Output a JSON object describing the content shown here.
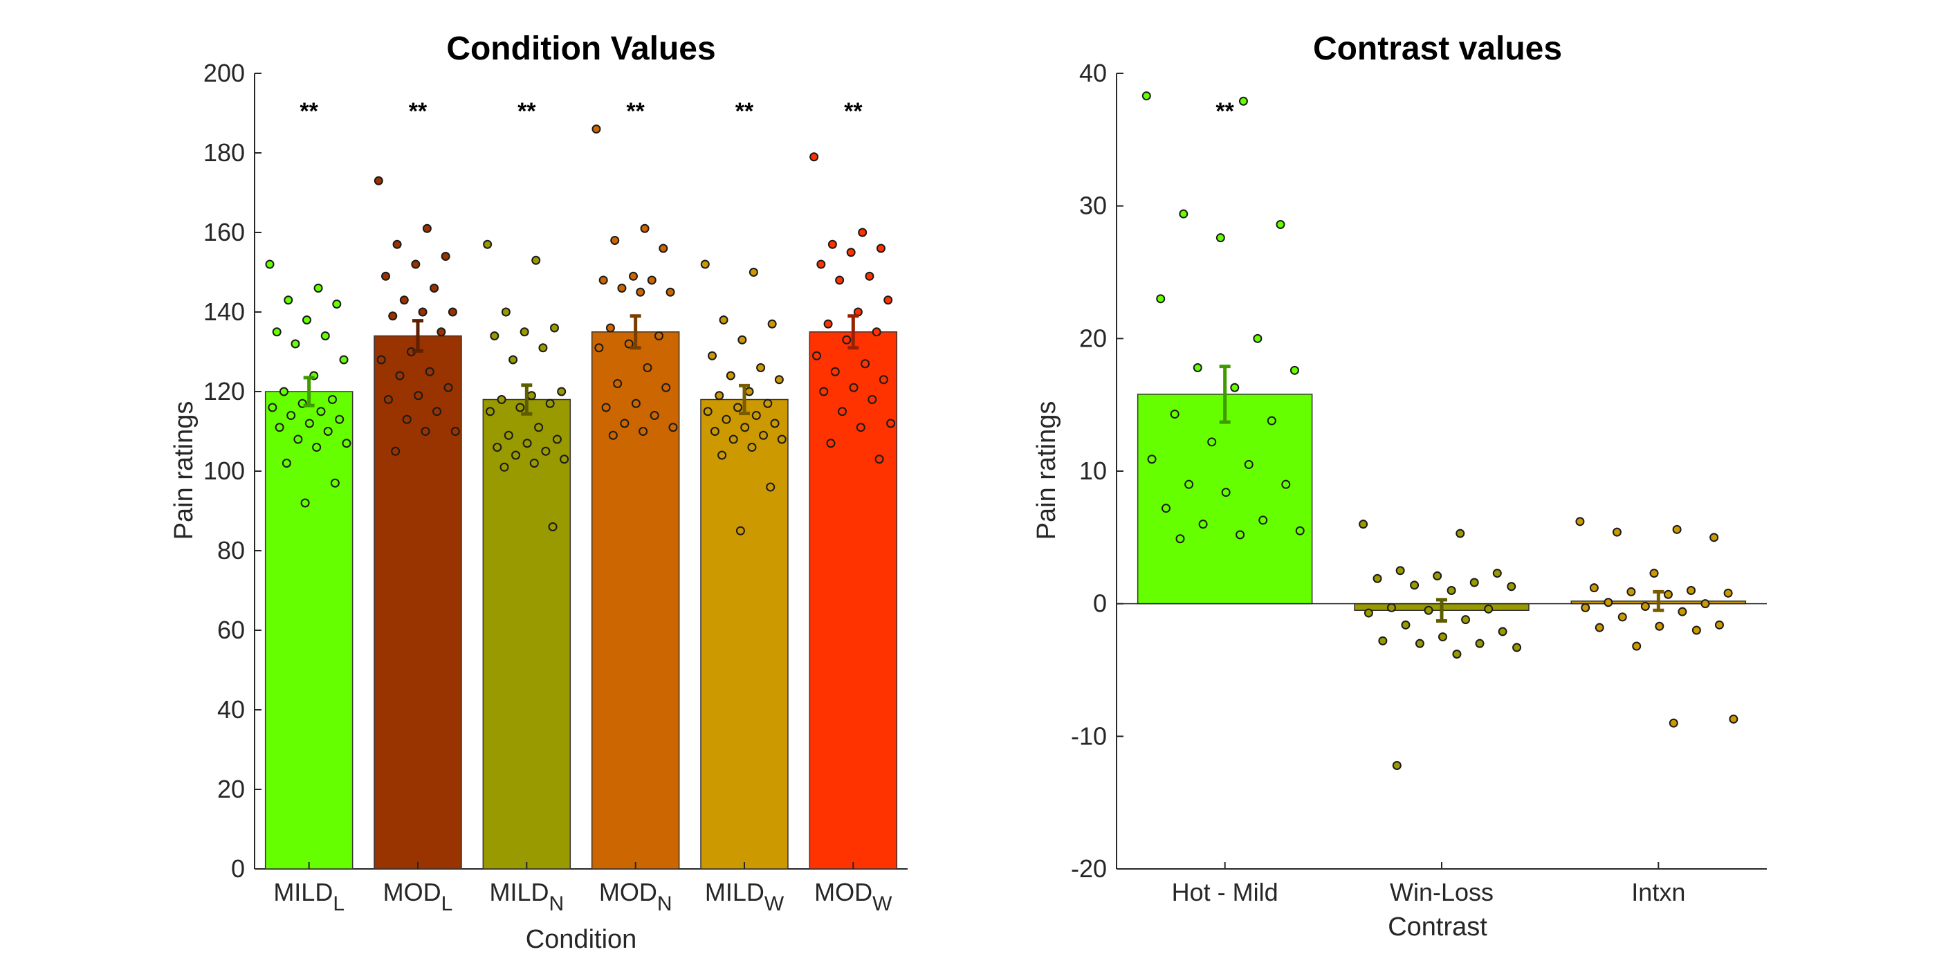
{
  "chart_data": [
    {
      "type": "bar",
      "title": "Condition Values",
      "xlabel": "Condition",
      "ylabel": "Pain ratings",
      "ylim": [
        0,
        200
      ],
      "yticks": [
        0,
        20,
        40,
        60,
        80,
        100,
        120,
        140,
        160,
        180,
        200
      ],
      "grid": false,
      "categories": [
        {
          "main": "MILD",
          "sub": "L"
        },
        {
          "main": "MOD",
          "sub": "L"
        },
        {
          "main": "MILD",
          "sub": "N"
        },
        {
          "main": "MOD",
          "sub": "N"
        },
        {
          "main": "MILD",
          "sub": "W"
        },
        {
          "main": "MOD",
          "sub": "W"
        }
      ],
      "values": [
        120,
        134,
        118,
        135,
        118,
        135
      ],
      "errors": [
        3.5,
        3.8,
        3.6,
        4.0,
        3.5,
        4.0
      ],
      "significance": [
        "**",
        "**",
        "**",
        "**",
        "**",
        "**"
      ],
      "colors": [
        "#66ff00",
        "#993300",
        "#999900",
        "#cc6600",
        "#cc9900",
        "#ff3300"
      ],
      "error_colors": [
        "#3f9900",
        "#5c1f00",
        "#5c5c00",
        "#7a3d00",
        "#7a5c00",
        "#992000"
      ],
      "points": [
        [
          152,
          146,
          143,
          142,
          138,
          135,
          134,
          132,
          128,
          124,
          120,
          118,
          117,
          116,
          115,
          114,
          113,
          112,
          111,
          110,
          108,
          107,
          106,
          102,
          97,
          92
        ],
        [
          173,
          161,
          157,
          154,
          152,
          149,
          146,
          143,
          140,
          140,
          139,
          135,
          130,
          128,
          125,
          124,
          121,
          119,
          118,
          115,
          113,
          110,
          110,
          105
        ],
        [
          157,
          153,
          140,
          136,
          135,
          134,
          131,
          128,
          120,
          119,
          118,
          117,
          116,
          115,
          111,
          109,
          108,
          107,
          106,
          105,
          104,
          103,
          102,
          101,
          86
        ],
        [
          186,
          161,
          158,
          156,
          149,
          148,
          148,
          146,
          145,
          145,
          136,
          134,
          132,
          131,
          126,
          122,
          121,
          117,
          116,
          114,
          112,
          111,
          110,
          109
        ],
        [
          152,
          150,
          138,
          137,
          133,
          129,
          126,
          124,
          123,
          120,
          119,
          117,
          116,
          115,
          114,
          113,
          112,
          111,
          110,
          109,
          108,
          108,
          106,
          104,
          96,
          85
        ],
        [
          179,
          160,
          157,
          156,
          155,
          152,
          149,
          148,
          143,
          140,
          137,
          135,
          133,
          129,
          127,
          125,
          123,
          121,
          120,
          118,
          115,
          112,
          111,
          107,
          103
        ]
      ]
    },
    {
      "type": "bar",
      "title": "Contrast values",
      "xlabel": "Contrast",
      "ylabel": "Pain ratings",
      "ylim": [
        -20,
        40
      ],
      "yticks": [
        -20,
        -10,
        0,
        10,
        20,
        30,
        40
      ],
      "grid": false,
      "categories": [
        "Hot - Mild",
        "Win-Loss",
        "Intxn"
      ],
      "values": [
        15.8,
        -0.5,
        0.2
      ],
      "errors": [
        2.1,
        0.8,
        0.7
      ],
      "significance": [
        "**",
        "",
        ""
      ],
      "colors": [
        "#66ff00",
        "#999900",
        "#cc9900"
      ],
      "error_colors": [
        "#3f9900",
        "#5c5c00",
        "#7a5c00"
      ],
      "points": [
        [
          38.3,
          37.9,
          29.4,
          28.6,
          27.6,
          23.0,
          20.0,
          17.8,
          17.6,
          16.3,
          14.3,
          13.8,
          12.2,
          10.9,
          10.5,
          9.0,
          9.0,
          8.4,
          7.2,
          6.3,
          6.0,
          5.5,
          5.2,
          4.9
        ],
        [
          6.0,
          5.3,
          2.5,
          2.3,
          2.1,
          1.9,
          1.6,
          1.4,
          1.3,
          1.0,
          -0.3,
          -0.4,
          -0.5,
          -0.7,
          -1.2,
          -1.6,
          -2.1,
          -2.5,
          -2.8,
          -3.0,
          -3.0,
          -3.3,
          -3.8,
          -12.2
        ],
        [
          6.2,
          5.6,
          5.4,
          5.0,
          2.3,
          1.2,
          1.0,
          0.9,
          0.8,
          0.7,
          0.1,
          0.0,
          -0.2,
          -0.3,
          -0.6,
          -1.0,
          -1.6,
          -1.7,
          -1.8,
          -2.0,
          -3.2,
          -8.7,
          -9.0
        ]
      ]
    }
  ]
}
